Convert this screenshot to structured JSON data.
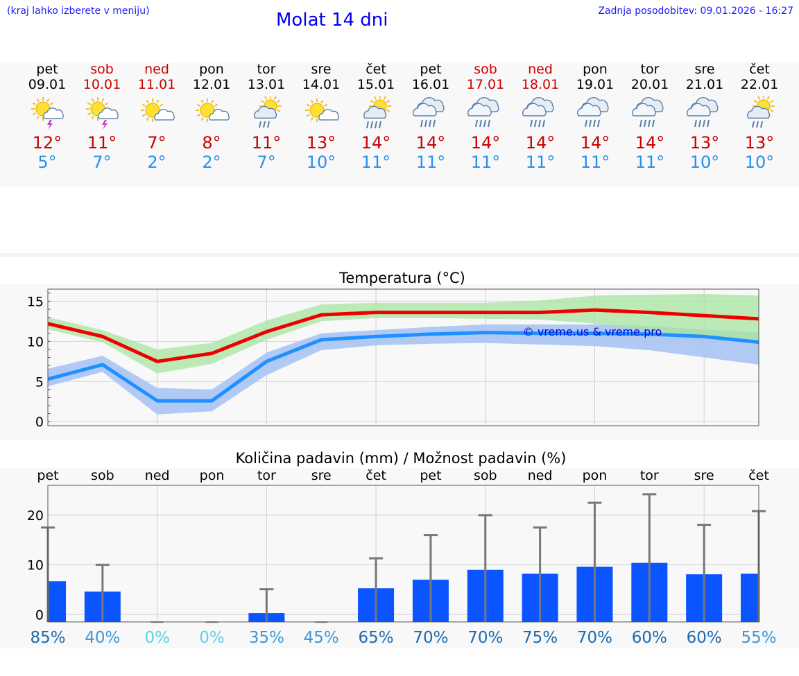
{
  "header": {
    "hint": "(kraj lahko izberete v meniju)",
    "title": "Molat 14 dni",
    "updated": "Zadnja posodobitev: 09.01.2026 - 16:27"
  },
  "days": [
    {
      "name": "pet",
      "date": "09.01",
      "weekend": false,
      "icon": "sun-cloud-thunder-icon",
      "tmax": "12°",
      "tmin": "5°"
    },
    {
      "name": "sob",
      "date": "10.01",
      "weekend": true,
      "icon": "sun-cloud-thunder-icon",
      "tmax": "11°",
      "tmin": "7°"
    },
    {
      "name": "ned",
      "date": "11.01",
      "weekend": true,
      "icon": "sun-cloud-icon",
      "tmax": "7°",
      "tmin": "2°"
    },
    {
      "name": "pon",
      "date": "12.01",
      "weekend": false,
      "icon": "sun-cloud-icon",
      "tmax": "8°",
      "tmin": "2°"
    },
    {
      "name": "tor",
      "date": "13.01",
      "weekend": false,
      "icon": "sun-cloud-rain-icon",
      "tmax": "11°",
      "tmin": "7°"
    },
    {
      "name": "sre",
      "date": "14.01",
      "weekend": false,
      "icon": "sun-cloud-icon",
      "tmax": "13°",
      "tmin": "10°"
    },
    {
      "name": "čet",
      "date": "15.01",
      "weekend": false,
      "icon": "sun-cloud-heavy-rain-icon",
      "tmax": "14°",
      "tmin": "11°"
    },
    {
      "name": "pet",
      "date": "16.01",
      "weekend": false,
      "icon": "cloud-rain-icon",
      "tmax": "14°",
      "tmin": "11°"
    },
    {
      "name": "sob",
      "date": "17.01",
      "weekend": true,
      "icon": "cloud-rain-icon",
      "tmax": "14°",
      "tmin": "11°"
    },
    {
      "name": "ned",
      "date": "18.01",
      "weekend": true,
      "icon": "cloud-rain-icon",
      "tmax": "14°",
      "tmin": "11°"
    },
    {
      "name": "pon",
      "date": "19.01",
      "weekend": false,
      "icon": "cloud-rain-icon",
      "tmax": "14°",
      "tmin": "11°"
    },
    {
      "name": "tor",
      "date": "20.01",
      "weekend": false,
      "icon": "cloud-rain-icon",
      "tmax": "14°",
      "tmin": "11°"
    },
    {
      "name": "sre",
      "date": "21.01",
      "weekend": false,
      "icon": "cloud-rain-icon",
      "tmax": "13°",
      "tmin": "10°"
    },
    {
      "name": "čet",
      "date": "22.01",
      "weekend": false,
      "icon": "sun-cloud-rain-icon",
      "tmax": "13°",
      "tmin": "10°"
    }
  ],
  "colors": {
    "max": "#ee0000",
    "min": "#1e90ff",
    "maxBand": "#a8e6a0",
    "minBand": "#a8c4f4",
    "overlap": "#7ec8b0",
    "bar": "#0a55ff",
    "err": "#777777"
  },
  "chart_data": [
    {
      "type": "line",
      "title": "Temperatura (°C)",
      "watermark": "© vreme.us & vreme.pro",
      "ylim": [
        -0.5,
        16.5
      ],
      "yticks": [
        0,
        5,
        10,
        15
      ],
      "series": [
        {
          "name": "max",
          "values": [
            12.2,
            10.6,
            7.5,
            8.5,
            11.2,
            13.3,
            13.6,
            13.6,
            13.6,
            13.6,
            13.9,
            13.6,
            13.2,
            12.8
          ]
        },
        {
          "name": "min",
          "values": [
            5.3,
            7.1,
            2.6,
            2.6,
            7.5,
            10.2,
            10.6,
            10.9,
            11.1,
            11.0,
            11.0,
            10.9,
            10.6,
            9.9
          ]
        }
      ],
      "bands": [
        {
          "name": "max-range",
          "upper": [
            13.0,
            11.4,
            9.0,
            9.8,
            12.6,
            14.6,
            14.8,
            14.8,
            14.8,
            15.1,
            15.7,
            15.8,
            15.9,
            15.7
          ],
          "lower": [
            11.5,
            9.9,
            6.0,
            7.2,
            10.2,
            12.5,
            12.9,
            12.9,
            12.8,
            12.7,
            12.2,
            11.3,
            10.6,
            9.9
          ]
        },
        {
          "name": "min-range",
          "upper": [
            6.6,
            8.2,
            4.2,
            4.0,
            8.6,
            11.0,
            11.4,
            11.8,
            12.1,
            12.1,
            12.1,
            11.9,
            11.5,
            11.1
          ],
          "lower": [
            4.4,
            6.2,
            0.9,
            1.3,
            5.8,
            8.9,
            9.5,
            9.7,
            9.8,
            9.6,
            9.4,
            8.9,
            8.0,
            7.1
          ]
        }
      ]
    },
    {
      "type": "bar",
      "title": "Količina padavin (mm) / Možnost padavin (%)",
      "categories": [
        "pet",
        "sob",
        "ned",
        "pon",
        "tor",
        "sre",
        "čet",
        "pet",
        "sob",
        "ned",
        "pon",
        "tor",
        "sre",
        "čet"
      ],
      "ylim": [
        -1.5,
        26
      ],
      "yticks": [
        0,
        10,
        20
      ],
      "values": [
        6.7,
        4.6,
        0,
        0,
        0.3,
        0,
        5.3,
        7.0,
        9.0,
        8.2,
        9.6,
        10.4,
        8.1,
        8.2
      ],
      "err_high": [
        17.5,
        10.0,
        0,
        0,
        5.1,
        0,
        11.3,
        16.0,
        20.0,
        17.5,
        22.5,
        24.2,
        18.0,
        20.8
      ],
      "probability": [
        "85%",
        "40%",
        "0%",
        "0%",
        "35%",
        "45%",
        "65%",
        "70%",
        "70%",
        "75%",
        "70%",
        "60%",
        "60%",
        "55%"
      ]
    }
  ]
}
